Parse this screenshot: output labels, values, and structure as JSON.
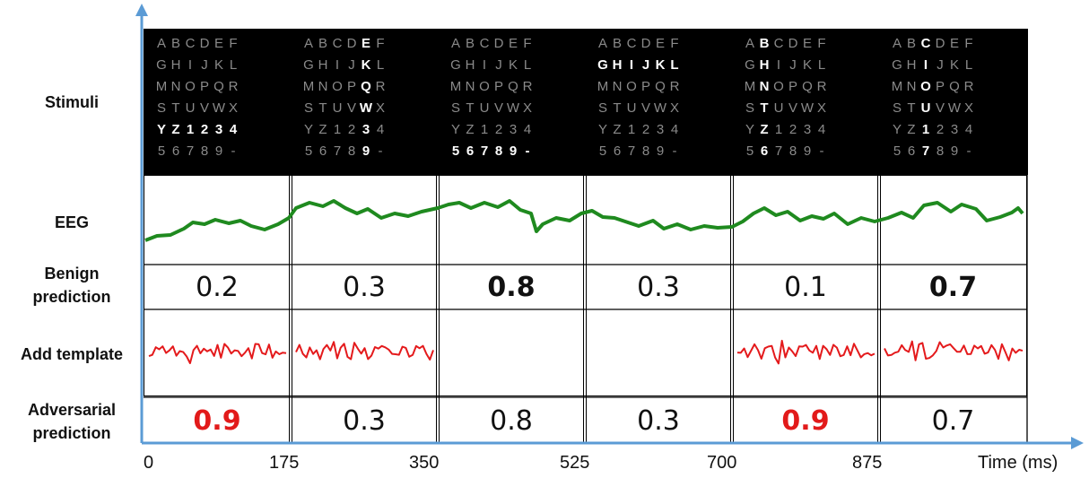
{
  "row_labels": {
    "stimuli": "Stimuli",
    "eeg": "EEG",
    "benign_1": "Benign",
    "benign_2": "prediction",
    "template": "Add template",
    "adversarial_1": "Adversarial",
    "adversarial_2": "prediction"
  },
  "speller_rows": [
    [
      "A",
      "B",
      "C",
      "D",
      "E",
      "F"
    ],
    [
      "G",
      "H",
      "I",
      "J",
      "K",
      "L"
    ],
    [
      "M",
      "N",
      "O",
      "P",
      "Q",
      "R"
    ],
    [
      "S",
      "T",
      "U",
      "V",
      "W",
      "X"
    ],
    [
      "Y",
      "Z",
      "1",
      "2",
      "3",
      "4"
    ],
    [
      "5",
      "6",
      "7",
      "8",
      "9",
      "-"
    ]
  ],
  "highlights": [
    {
      "type": "row",
      "index": 4
    },
    {
      "type": "col",
      "index": 4
    },
    {
      "type": "row",
      "index": 5
    },
    {
      "type": "row",
      "index": 1
    },
    {
      "type": "col",
      "index": 1
    },
    {
      "type": "col",
      "index": 2
    }
  ],
  "benign_predictions": [
    {
      "value": "0.2",
      "style": "normal"
    },
    {
      "value": "0.3",
      "style": "normal"
    },
    {
      "value": "0.8",
      "style": "bold"
    },
    {
      "value": "0.3",
      "style": "normal"
    },
    {
      "value": "0.1",
      "style": "normal"
    },
    {
      "value": "0.7",
      "style": "bold"
    }
  ],
  "adversarial_predictions": [
    {
      "value": "0.9",
      "style": "red"
    },
    {
      "value": "0.3",
      "style": "normal"
    },
    {
      "value": "0.8",
      "style": "normal"
    },
    {
      "value": "0.3",
      "style": "normal"
    },
    {
      "value": "0.9",
      "style": "red"
    },
    {
      "value": "0.7",
      "style": "normal"
    }
  ],
  "template_present": [
    true,
    true,
    false,
    false,
    true,
    true
  ],
  "time_axis": {
    "ticks": [
      "0",
      "175",
      "350",
      "525",
      "700",
      "875"
    ],
    "label": "Time (ms)"
  },
  "colors": {
    "axis": "#5b9bd5",
    "eeg": "#1f8a1f",
    "template": "#e41a1c",
    "adversarial_highlight": "#e21a1a"
  }
}
